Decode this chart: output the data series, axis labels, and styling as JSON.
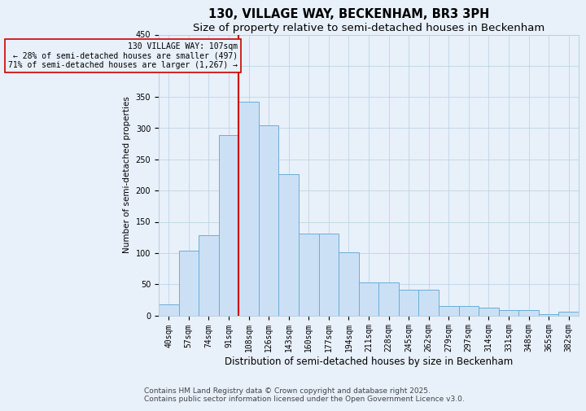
{
  "title": "130, VILLAGE WAY, BECKENHAM, BR3 3PH",
  "subtitle": "Size of property relative to semi-detached houses in Beckenham",
  "xlabel": "Distribution of semi-detached houses by size in Beckenham",
  "ylabel": "Number of semi-detached properties",
  "categories": [
    "40sqm",
    "57sqm",
    "74sqm",
    "91sqm",
    "108sqm",
    "126sqm",
    "143sqm",
    "160sqm",
    "177sqm",
    "194sqm",
    "211sqm",
    "228sqm",
    "245sqm",
    "262sqm",
    "279sqm",
    "297sqm",
    "314sqm",
    "331sqm",
    "348sqm",
    "365sqm",
    "382sqm"
  ],
  "values": [
    18,
    104,
    128,
    289,
    343,
    305,
    226,
    131,
    131,
    101,
    53,
    53,
    41,
    41,
    15,
    15,
    13,
    8,
    8,
    2,
    6
  ],
  "bar_color": "#cce0f5",
  "bar_edge_color": "#6aaed6",
  "grid_color": "#b8cfe0",
  "background_color": "#e8f0fa",
  "vline_index": 4,
  "vline_color": "#cc0000",
  "annotation_text": "130 VILLAGE WAY: 107sqm\n← 28% of semi-detached houses are smaller (497)\n71% of semi-detached houses are larger (1,267) →",
  "annotation_box_color": "#cc0000",
  "ylim": [
    0,
    450
  ],
  "title_fontsize": 10.5,
  "subtitle_fontsize": 9.5,
  "xlabel_fontsize": 8.5,
  "ylabel_fontsize": 7.5,
  "tick_fontsize": 7,
  "footer_text": "Contains HM Land Registry data © Crown copyright and database right 2025.\nContains public sector information licensed under the Open Government Licence v3.0.",
  "footer_fontsize": 6.5
}
